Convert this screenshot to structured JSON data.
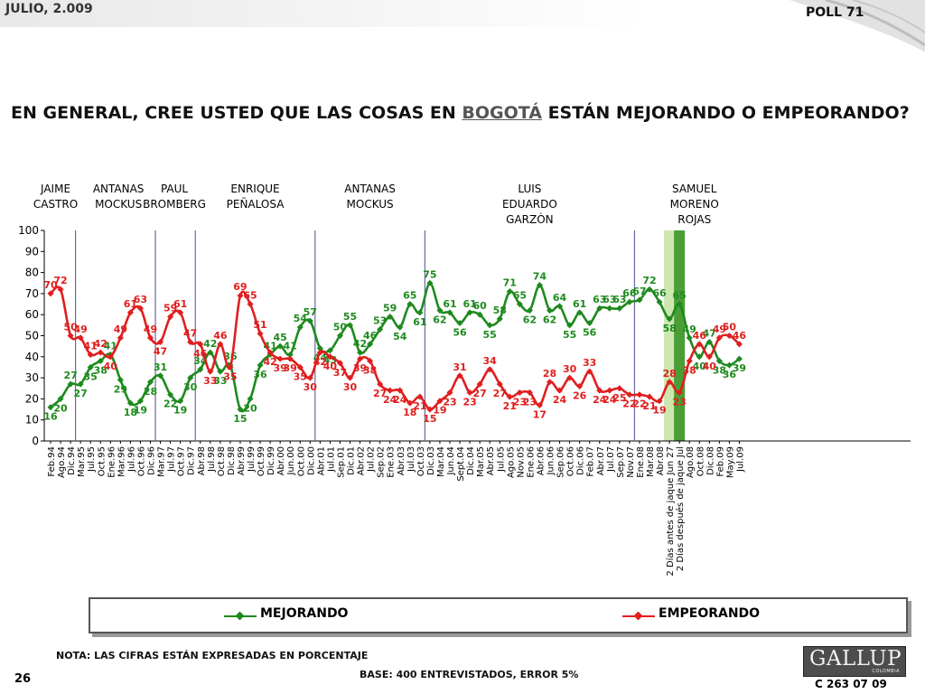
{
  "header": {
    "date": "JULIO, 2.009",
    "poll": "POLL 71"
  },
  "question": {
    "before": "EN GENERAL, CREE USTED QUE LAS COSAS EN ",
    "underlined": "BOGOTÁ",
    "after": " ESTÁN MEJORANDO O EMPEORANDO?"
  },
  "footer": {
    "note": "NOTA: LAS CIFRAS ESTÁN EXPRESADAS EN PORCENTAJE",
    "base": "BASE: 400 ENTREVISTADOS, ERROR 5%",
    "page": "26",
    "code": "C 263 07 09",
    "logo": "GALLUP",
    "logo_sub": "COLOMBIA"
  },
  "colors": {
    "mejorando": "#1e8a1e",
    "empeorando": "#e01e1e",
    "divider": "#6a6aa0",
    "band_light": "#cce7b0",
    "band_dark": "#4a9e35"
  },
  "chart_data": {
    "type": "line",
    "ylim": [
      0,
      100
    ],
    "yticks": [
      "0",
      "10",
      "20",
      "30",
      "40",
      "50",
      "60",
      "70",
      "80",
      "90",
      "100"
    ],
    "categories": [
      "Feb.94",
      "Ago.94",
      "Dic.94",
      "Mar.95",
      "Jul.95",
      "Oct.95",
      "Ene.96",
      "Mar.96",
      "Jul.96",
      "Oct.96",
      "Dic.96",
      "Mar.97",
      "Jul.97",
      "Oct.97",
      "Dic.97",
      "Abr.98",
      "Jul.98",
      "Oct.98",
      "Dic.98",
      "Abr.99",
      "Jul.99",
      "Oct.99",
      "Dic.99",
      "Abr.00",
      "Jun.00",
      "Oct.00",
      "Dic.00",
      "Abr.01",
      "Jul.01",
      "Sep.01",
      "Dic.01",
      "Abr.02",
      "Jul.02",
      "Sep.02",
      "Ene.03",
      "Abr.03",
      "Jul.03",
      "Oct.03",
      "Dic.03",
      "Mar.04",
      "Jun.04",
      "Sept.04",
      "Dic.04",
      "Mar.05",
      "Abr.05",
      "Jul.05",
      "Ago.05",
      "Nov.05",
      "Ene.06",
      "Abr.06",
      "Jun.06",
      "Sep.06",
      "Oct.06",
      "Dic.06",
      "Feb.07",
      "Abr.07",
      "Jul.07",
      "Sep.07",
      "Nov.07",
      "Ene.08",
      "Mar.08",
      "Abr.08",
      "2 Días antes de jaque Jun 27",
      "2 Días después de jaque Jul",
      "Ago.08",
      "Oct.08",
      "Dic.08",
      "Feb.09",
      "May.09",
      "Jul.09"
    ],
    "series": [
      {
        "name": "MEJORANDO",
        "values": [
          16,
          20,
          27,
          27,
          35,
          38,
          41,
          29,
          18,
          19,
          28,
          31,
          22,
          19,
          30,
          34,
          42,
          33,
          36,
          15,
          20,
          36,
          41,
          45,
          41,
          54,
          57,
          44,
          43,
          50,
          55,
          42,
          46,
          53,
          59,
          54,
          65,
          61,
          75,
          62,
          61,
          56,
          61,
          60,
          55,
          58,
          71,
          65,
          62,
          74,
          62,
          64,
          55,
          61,
          56,
          63,
          63,
          63,
          66,
          67,
          72,
          66,
          58,
          65,
          49,
          40,
          47,
          38,
          36,
          39
        ]
      },
      {
        "name": "EMPEORANDO",
        "values": [
          70,
          72,
          50,
          49,
          41,
          42,
          40,
          49,
          61,
          63,
          49,
          47,
          59,
          61,
          47,
          46,
          33,
          46,
          35,
          69,
          65,
          51,
          42,
          39,
          39,
          35,
          30,
          42,
          40,
          37,
          30,
          39,
          38,
          27,
          24,
          24,
          18,
          21,
          15,
          19,
          23,
          31,
          23,
          27,
          34,
          27,
          21,
          23,
          23,
          17,
          28,
          24,
          30,
          26,
          33,
          24,
          24,
          25,
          22,
          22,
          21,
          19,
          28,
          23,
          38,
          46,
          40,
          49,
          50,
          46
        ]
      }
    ],
    "label_offsets": {
      "comment": "per-point label side: 1 = above, -1 = below",
      "MEJORANDO": [
        -1,
        -1,
        1,
        -1,
        -1,
        -1,
        1,
        -1,
        -1,
        -1,
        -1,
        1,
        -1,
        -1,
        -1,
        1,
        1,
        -1,
        1,
        -1,
        -1,
        -1,
        1,
        1,
        1,
        1,
        1,
        -1,
        -1,
        1,
        1,
        1,
        1,
        1,
        1,
        -1,
        1,
        -1,
        1,
        -1,
        1,
        -1,
        1,
        1,
        -1,
        1,
        1,
        1,
        -1,
        1,
        -1,
        1,
        -1,
        1,
        -1,
        1,
        1,
        1,
        1,
        1,
        1,
        1,
        -1,
        1,
        1,
        -1,
        1,
        -1,
        -1,
        -1
      ],
      "EMPEORANDO": [
        1,
        1,
        1,
        1,
        1,
        1,
        -1,
        1,
        1,
        1,
        1,
        -1,
        1,
        1,
        1,
        -1,
        -1,
        1,
        -1,
        1,
        1,
        1,
        -1,
        -1,
        -1,
        -1,
        -1,
        -1,
        -1,
        -1,
        -1,
        -1,
        -1,
        -1,
        -1,
        -1,
        -1,
        -1,
        -1,
        -1,
        -1,
        1,
        -1,
        -1,
        1,
        -1,
        -1,
        -1,
        -1,
        -1,
        1,
        -1,
        1,
        -1,
        1,
        -1,
        -1,
        -1,
        -1,
        -1,
        -1,
        -1,
        1,
        -1,
        -1,
        1,
        -1,
        1,
        1,
        1
      ]
    },
    "periods": [
      {
        "name": "JAIME CASTRO",
        "lines": [
          "JAIME",
          "CASTRO"
        ]
      },
      {
        "name": "ANTANAS MOCKUS",
        "lines": [
          "ANTANAS",
          "MOCKUS"
        ]
      },
      {
        "name": "PAUL BROMBERG",
        "lines": [
          "PAUL",
          "BROMBERG"
        ]
      },
      {
        "name": "ENRIQUE PEÑALOSA",
        "lines": [
          "ENRIQUE",
          "PEÑALOSA"
        ]
      },
      {
        "name": "ANTANAS MOCKUS",
        "lines": [
          "ANTANAS",
          "MOCKUS"
        ]
      },
      {
        "name": "LUIS EDUARDO GARZÒN",
        "lines": [
          "LUIS",
          "EDUARDO",
          "GARZÒN"
        ]
      },
      {
        "name": "SAMUEL MORENO ROJAS",
        "lines": [
          "SAMUEL",
          "MORENO",
          "ROJAS"
        ]
      }
    ],
    "legend": [
      "MEJORANDO",
      "EMPEORANDO"
    ],
    "legend_position": "bottom",
    "grid": false
  }
}
